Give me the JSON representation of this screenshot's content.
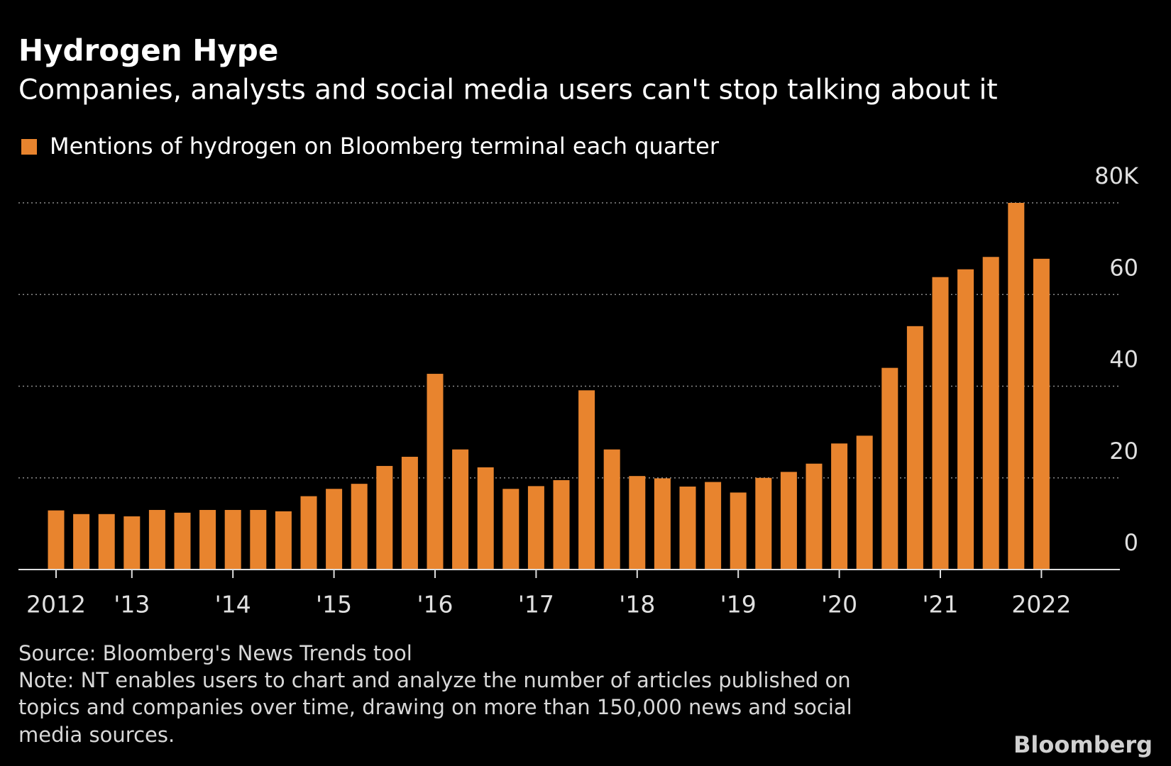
{
  "chart_data": {
    "type": "bar",
    "title": "Hydrogen Hype",
    "subtitle": "Companies, analysts and social media users can't stop talking about it",
    "series": [
      {
        "name": "Mentions of hydrogen on Bloomberg terminal each quarter",
        "color": "#e8842e",
        "values": [
          12.9,
          12.1,
          12.1,
          11.6,
          13.0,
          12.4,
          13.0,
          13.0,
          13.0,
          12.7,
          16.0,
          17.6,
          18.7,
          22.6,
          24.6,
          42.7,
          26.2,
          22.3,
          17.6,
          18.2,
          19.5,
          39.1,
          26.2,
          20.4,
          19.9,
          18.1,
          19.1,
          16.8,
          20.0,
          21.3,
          23.1,
          27.5,
          29.2,
          44.0,
          53.1,
          63.8,
          65.5,
          68.2,
          80.0,
          67.8
        ]
      }
    ],
    "categories": [
      "2012",
      null,
      null,
      "'13",
      null,
      null,
      null,
      "'14",
      null,
      null,
      null,
      "'15",
      null,
      null,
      null,
      "'16",
      null,
      null,
      null,
      "'17",
      null,
      null,
      null,
      "'18",
      null,
      null,
      null,
      "'19",
      null,
      null,
      null,
      "'20",
      null,
      null,
      null,
      "'21",
      null,
      null,
      null,
      "2022"
    ],
    "ylim": [
      0,
      80
    ],
    "yticks": [
      0,
      20,
      40,
      60,
      {
        "value": 80,
        "label": "80K"
      }
    ],
    "grid": true,
    "source": "Source: Bloomberg's News Trends tool",
    "note": [
      "Note: NT enables users to chart and analyze the number of articles published on",
      "topics and companies over time, drawing on more than 150,000 news and social",
      "media sources."
    ],
    "logo": "Bloomberg"
  }
}
